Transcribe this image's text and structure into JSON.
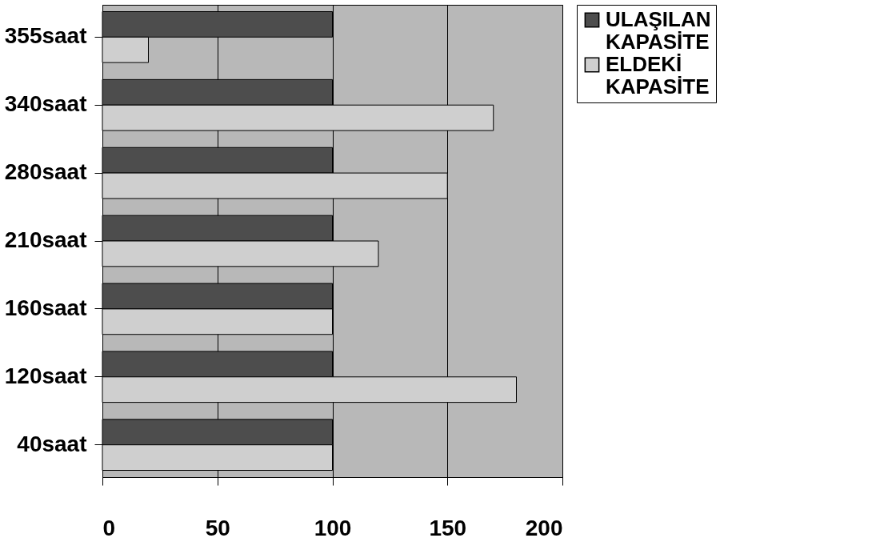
{
  "chart_data": {
    "type": "bar",
    "orientation": "horizontal",
    "categories": [
      "355saat",
      "340saat",
      "280saat",
      "210saat",
      "160saat",
      "120saat",
      "40saat"
    ],
    "series": [
      {
        "name": "ULAŞILAN KAPASİTE",
        "color": "#4d4d4d",
        "values": [
          100,
          100,
          100,
          100,
          100,
          100,
          100
        ]
      },
      {
        "name": "ELDEKİ KAPASİTE",
        "color": "#cfcfcf",
        "values": [
          20,
          170,
          150,
          120,
          100,
          180,
          100
        ]
      }
    ],
    "xlim": [
      0,
      200
    ],
    "xticks": [
      0,
      50,
      100,
      150,
      200
    ],
    "grid": "x",
    "legend": "right"
  }
}
